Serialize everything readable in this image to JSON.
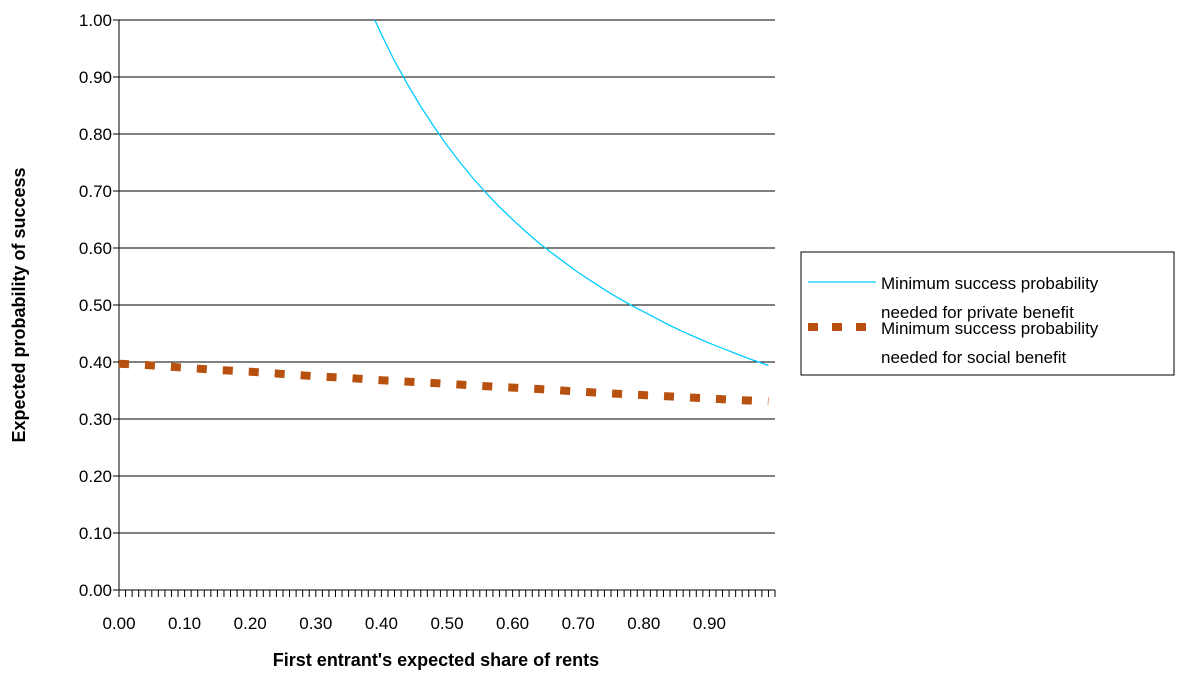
{
  "chart_data": {
    "type": "line",
    "title": "",
    "xlabel": "First entrant's expected share of rents",
    "ylabel": "Expected probability of success",
    "xlim": [
      0,
      1
    ],
    "ylim": [
      0,
      1
    ],
    "x_ticks": [
      "0.00",
      "0.10",
      "0.20",
      "0.30",
      "0.40",
      "0.50",
      "0.60",
      "0.70",
      "0.80",
      "0.90"
    ],
    "y_ticks": [
      "0.00",
      "0.10",
      "0.20",
      "0.30",
      "0.40",
      "0.50",
      "0.60",
      "0.70",
      "0.80",
      "0.90",
      "1.00"
    ],
    "grid": "horizontal major gridlines",
    "legend_position": "right",
    "series": [
      {
        "name": "Minimum success probability needed for private benefit",
        "color": "#00CCFF",
        "style": "solid",
        "x": [
          0.39,
          0.4,
          0.42,
          0.44,
          0.46,
          0.48,
          0.5,
          0.52,
          0.54,
          0.56,
          0.58,
          0.6,
          0.62,
          0.64,
          0.66,
          0.68,
          0.7,
          0.72,
          0.74,
          0.76,
          0.78,
          0.8,
          0.82,
          0.84,
          0.86,
          0.88,
          0.9,
          0.92,
          0.94,
          0.96,
          0.98,
          0.99
        ],
        "y": [
          1.0,
          0.975,
          0.928,
          0.887,
          0.848,
          0.813,
          0.78,
          0.75,
          0.722,
          0.696,
          0.672,
          0.65,
          0.629,
          0.609,
          0.591,
          0.574,
          0.557,
          0.542,
          0.527,
          0.513,
          0.5,
          0.488,
          0.476,
          0.464,
          0.453,
          0.443,
          0.433,
          0.424,
          0.415,
          0.406,
          0.398,
          0.394
        ]
      },
      {
        "name": "Minimum success probability needed for social benefit",
        "color": "#B8500F",
        "style": "dashed",
        "x": [
          0.0,
          0.05,
          0.1,
          0.15,
          0.2,
          0.25,
          0.3,
          0.35,
          0.4,
          0.45,
          0.5,
          0.55,
          0.6,
          0.65,
          0.7,
          0.75,
          0.8,
          0.85,
          0.9,
          0.95,
          0.99
        ],
        "y": [
          0.397,
          0.394,
          0.39,
          0.386,
          0.383,
          0.379,
          0.375,
          0.372,
          0.368,
          0.365,
          0.362,
          0.358,
          0.355,
          0.352,
          0.348,
          0.345,
          0.342,
          0.339,
          0.336,
          0.333,
          0.331
        ]
      }
    ]
  },
  "legend": {
    "items": [
      {
        "line1": "Minimum success probability",
        "line2": "needed for private benefit"
      },
      {
        "line1": "Minimum success probability",
        "line2": "needed for social benefit"
      }
    ]
  }
}
